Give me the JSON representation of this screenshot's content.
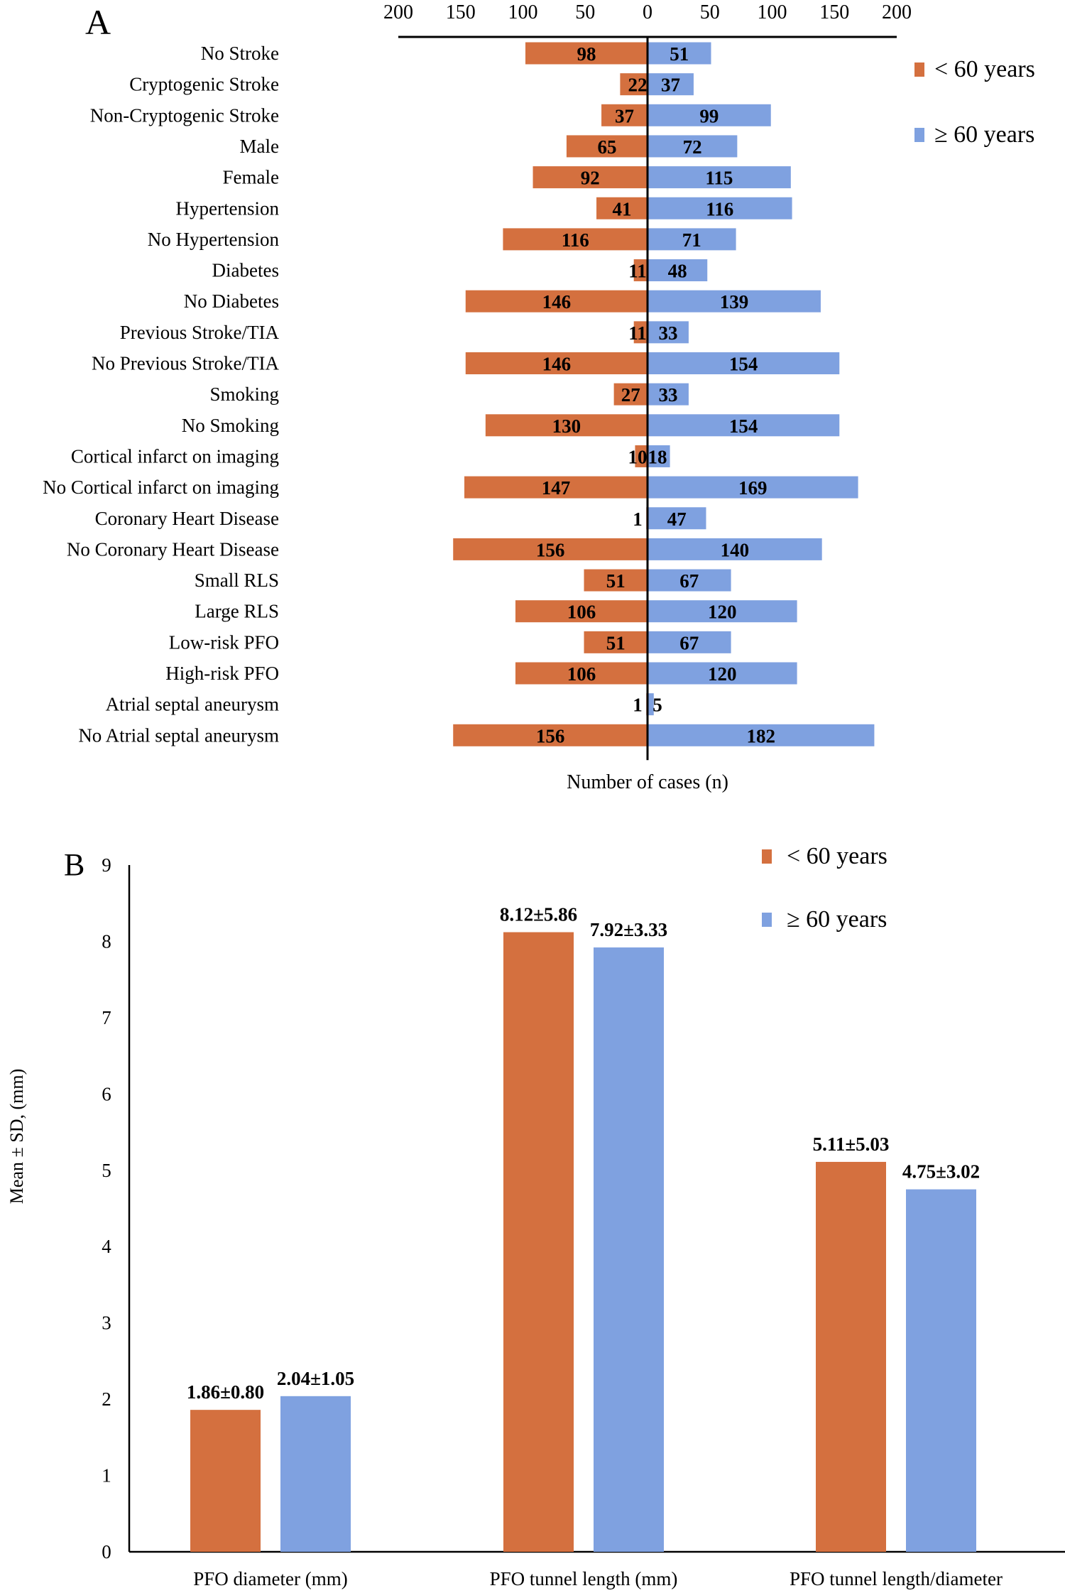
{
  "colors": {
    "under60": "#D4703F",
    "over60": "#7FA1E0",
    "axis": "#000000"
  },
  "chart_data": [
    {
      "panel": "A",
      "type": "bar",
      "orientation": "horizontal-diverging",
      "title": "",
      "xlabel": "Number of cases (n)",
      "ylabel": "",
      "xlim": [
        -200,
        200
      ],
      "xticks": [
        200,
        150,
        100,
        50,
        0,
        50,
        100,
        150,
        200
      ],
      "legend": {
        "position": "top-right",
        "entries": [
          "< 60 years",
          "≥ 60 years"
        ]
      },
      "categories": [
        "No Stroke",
        "Cryptogenic Stroke",
        "Non-Cryptogenic Stroke",
        "Male",
        "Female",
        "Hypertension",
        "No Hypertension",
        "Diabetes",
        "No Diabetes",
        "Previous Stroke/TIA",
        "No Previous Stroke/TIA",
        "Smoking",
        "No Smoking",
        "Cortical infarct on imaging",
        "No Cortical infarct on imaging",
        "Coronary Heart Disease",
        "No Coronary Heart Disease",
        "Small RLS",
        "Large RLS",
        "Low-risk PFO",
        "High-risk PFO",
        "Atrial septal aneurysm",
        "No Atrial septal aneurysm"
      ],
      "series": [
        {
          "name": "< 60 years",
          "values": [
            98,
            22,
            37,
            65,
            92,
            41,
            116,
            11,
            146,
            11,
            146,
            27,
            130,
            10,
            147,
            1,
            156,
            51,
            106,
            51,
            106,
            1,
            156
          ]
        },
        {
          "name": "≥ 60 years",
          "values": [
            51,
            37,
            99,
            72,
            115,
            116,
            71,
            48,
            139,
            33,
            154,
            33,
            154,
            18,
            169,
            47,
            140,
            67,
            120,
            67,
            120,
            5,
            182
          ]
        }
      ]
    },
    {
      "panel": "B",
      "type": "bar",
      "orientation": "vertical-grouped",
      "title": "",
      "xlabel": "",
      "ylabel": "Mean ± SD, (mm)",
      "ylim": [
        0,
        9
      ],
      "yticks": [
        0,
        1,
        2,
        3,
        4,
        5,
        6,
        7,
        8,
        9
      ],
      "legend": {
        "position": "top-right",
        "entries": [
          "< 60 years",
          "≥ 60 years"
        ]
      },
      "categories": [
        "PFO diameter (mm)",
        "PFO tunnel length (mm)",
        "PFO tunnel length/diameter"
      ],
      "series": [
        {
          "name": "< 60 years",
          "values": [
            1.86,
            8.12,
            5.11
          ],
          "sd": [
            0.8,
            5.86,
            5.03
          ],
          "labels": [
            "1.86±0.80",
            "8.12±5.86",
            "5.11±5.03"
          ]
        },
        {
          "name": "≥ 60 years",
          "values": [
            2.04,
            7.92,
            4.75
          ],
          "sd": [
            1.05,
            3.33,
            3.02
          ],
          "labels": [
            "2.04±1.05",
            "7.92±3.33",
            "4.75±3.02"
          ]
        }
      ]
    }
  ]
}
